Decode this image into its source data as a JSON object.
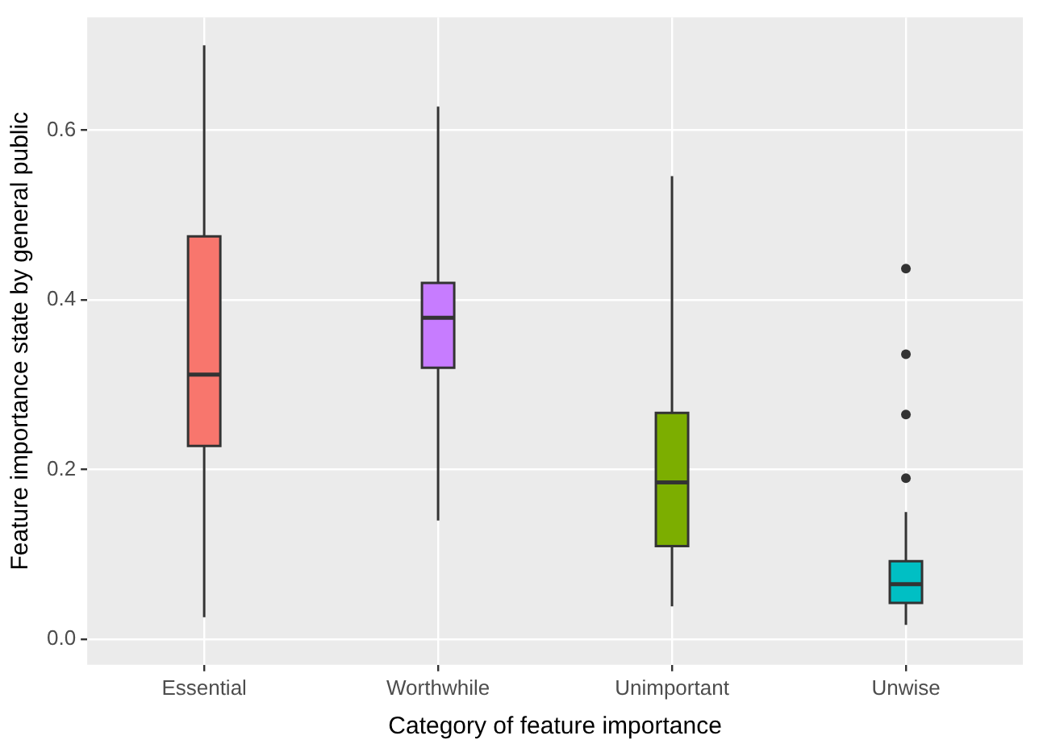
{
  "chart_data": {
    "type": "box",
    "xlabel": "Category of feature importance",
    "ylabel": "Feature importance state by general public",
    "categories": [
      "Essential",
      "Worthwhile",
      "Unimportant",
      "Unwise"
    ],
    "colors": [
      "#f8766d",
      "#c77cff",
      "#7cae00",
      "#00bfc4"
    ],
    "boxes": [
      {
        "low": 0.026,
        "q1": 0.228,
        "median": 0.312,
        "q3": 0.475,
        "high": 0.7
      },
      {
        "low": 0.14,
        "q1": 0.32,
        "median": 0.379,
        "q3": 0.42,
        "high": 0.628
      },
      {
        "low": 0.039,
        "q1": 0.11,
        "median": 0.185,
        "q3": 0.267,
        "high": 0.546
      },
      {
        "low": 0.017,
        "q1": 0.043,
        "median": 0.065,
        "q3": 0.092,
        "high": 0.15,
        "outliers": [
          0.19,
          0.265,
          0.336,
          0.437
        ]
      }
    ],
    "ylim": [
      -0.03,
      0.733
    ],
    "yticks": [
      {
        "value": 0,
        "label": "0.0"
      },
      {
        "value": 0.2,
        "label": "0.2"
      },
      {
        "value": 0.4,
        "label": "0.4"
      },
      {
        "value": 0.6,
        "label": "0.6"
      }
    ],
    "grid": true,
    "legend": false
  }
}
